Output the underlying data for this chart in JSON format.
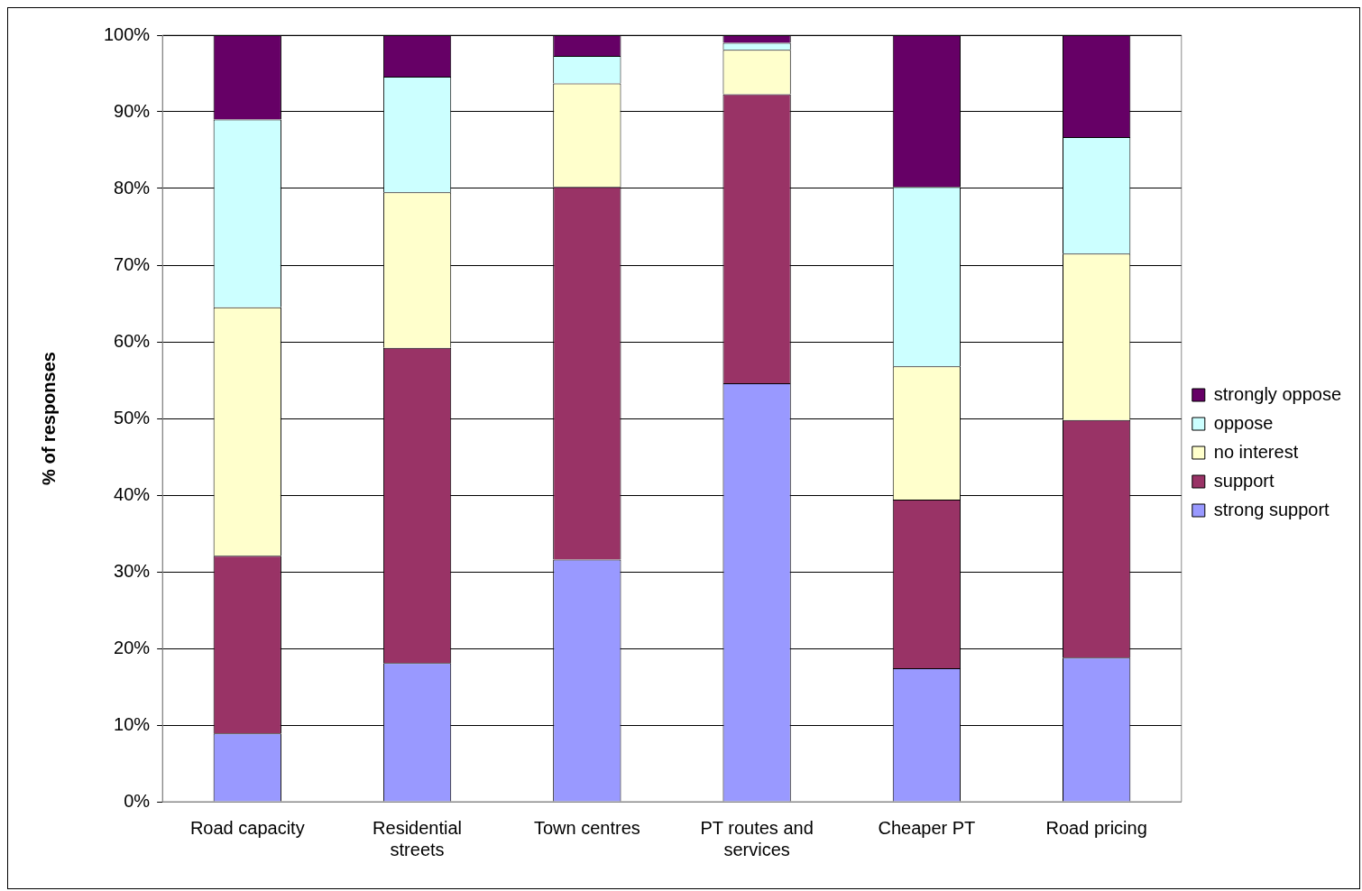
{
  "chart_data": {
    "type": "bar",
    "stacked": true,
    "ylabel": "% of responses",
    "categories": [
      "Road capacity",
      "Residential streets",
      "Town centres",
      "PT routes and services",
      "Cheaper PT",
      "Road pricing"
    ],
    "series": [
      {
        "name": "strong support",
        "color": "#9999ff",
        "values": [
          8.9,
          18.1,
          31.6,
          54.6,
          17.4,
          18.8
        ]
      },
      {
        "name": "support",
        "color": "#993366",
        "values": [
          23.2,
          41.1,
          48.6,
          37.7,
          22.0,
          31.0
        ]
      },
      {
        "name": "no interest",
        "color": "#ffffcc",
        "values": [
          32.4,
          20.3,
          13.5,
          5.8,
          17.4,
          21.7
        ]
      },
      {
        "name": "oppose",
        "color": "#ccffff",
        "values": [
          24.5,
          15.1,
          3.6,
          0.9,
          23.4,
          15.2
        ]
      },
      {
        "name": "strongly oppose",
        "color": "#660066",
        "values": [
          11.0,
          5.4,
          2.7,
          1.0,
          19.8,
          13.3
        ]
      }
    ],
    "ylim": [
      0,
      100
    ],
    "yticks": [
      {
        "value": 0,
        "label": "0%"
      },
      {
        "value": 10,
        "label": "10%"
      },
      {
        "value": 20,
        "label": "20%"
      },
      {
        "value": 30,
        "label": "30%"
      },
      {
        "value": 40,
        "label": "40%"
      },
      {
        "value": 50,
        "label": "50%"
      },
      {
        "value": 60,
        "label": "60%"
      },
      {
        "value": 70,
        "label": "70%"
      },
      {
        "value": 80,
        "label": "80%"
      },
      {
        "value": 90,
        "label": "90%"
      },
      {
        "value": 100,
        "label": "100%"
      }
    ],
    "grid": "y",
    "legend": "right"
  }
}
